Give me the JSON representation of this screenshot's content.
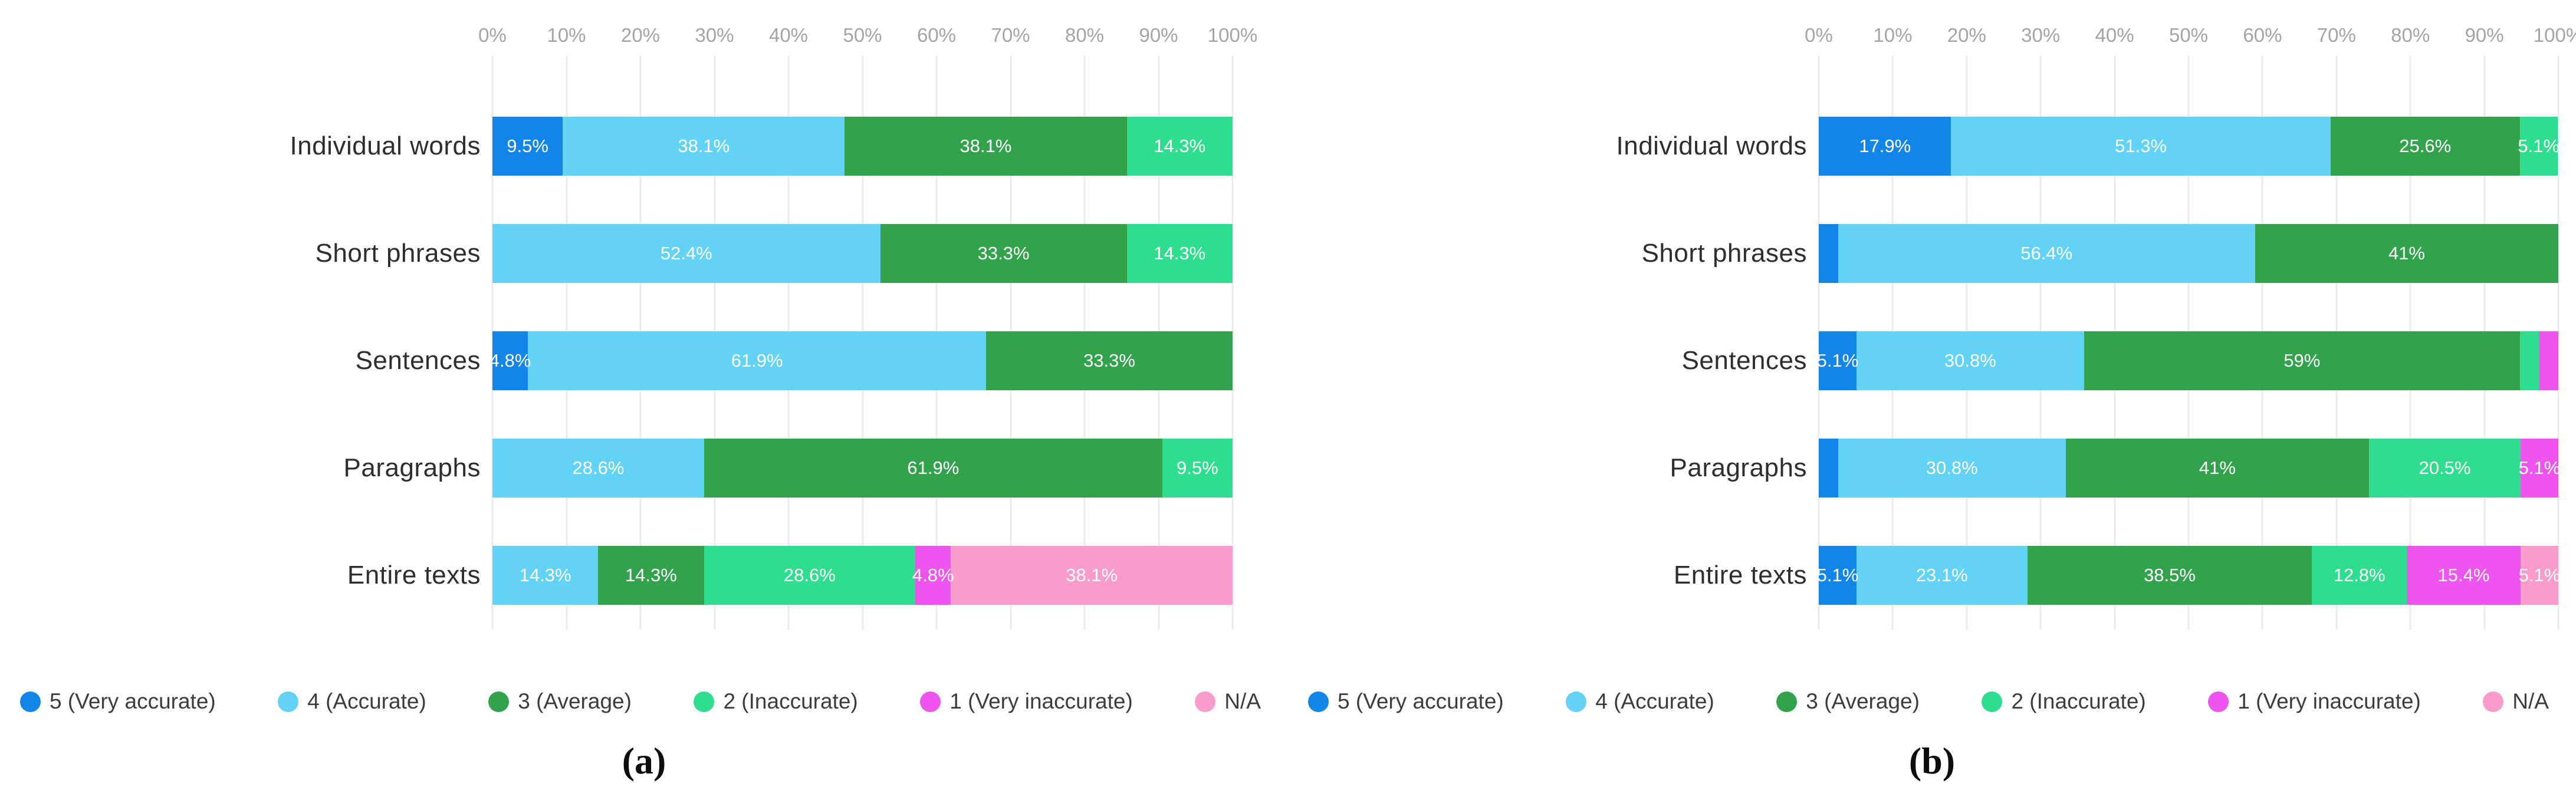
{
  "axis": {
    "ticks": [
      "0%",
      "10%",
      "20%",
      "30%",
      "40%",
      "50%",
      "60%",
      "70%",
      "80%",
      "90%",
      "100%"
    ],
    "min": 0,
    "max": 100,
    "grid_color": "#e9eaf3",
    "tick_color": "#a4a4a4"
  },
  "legend": [
    {
      "key": "c5",
      "label": "5 (Very accurate)",
      "color": "#1285e9"
    },
    {
      "key": "c4",
      "label": "4 (Accurate)",
      "color": "#62d2f6"
    },
    {
      "key": "c3",
      "label": "3 (Average)",
      "color": "#33a24c"
    },
    {
      "key": "c2",
      "label": "2 (Inaccurate)",
      "color": "#2edd8d"
    },
    {
      "key": "c1",
      "label": "1 (Very inaccurate)",
      "color": "#ee55ef"
    },
    {
      "key": "cna",
      "label": "N/A",
      "color": "#f99bcb"
    }
  ],
  "chart_data": [
    {
      "type": "bar",
      "orientation": "horizontal-stacked",
      "caption": "(a)",
      "title": "",
      "xlabel": "",
      "ylabel": "",
      "xlim": [
        0,
        100
      ],
      "x_ticks": [
        "0%",
        "10%",
        "20%",
        "30%",
        "40%",
        "50%",
        "60%",
        "70%",
        "80%",
        "90%",
        "100%"
      ],
      "legend_position": "bottom",
      "grid": true,
      "categories": [
        "Individual words",
        "Short phrases",
        "Sentences",
        "Paragraphs",
        "Entire texts"
      ],
      "series": [
        {
          "name": "5 (Very accurate)",
          "key": "c5",
          "values": [
            9.5,
            0,
            4.8,
            0,
            0
          ],
          "labels": [
            "9.5%",
            "",
            "4.8%",
            "",
            ""
          ]
        },
        {
          "name": "4 (Accurate)",
          "key": "c4",
          "values": [
            38.1,
            52.4,
            61.9,
            28.6,
            14.3
          ],
          "labels": [
            "38.1%",
            "52.4%",
            "61.9%",
            "28.6%",
            "14.3%"
          ]
        },
        {
          "name": "3 (Average)",
          "key": "c3",
          "values": [
            38.1,
            33.3,
            33.3,
            61.9,
            14.3
          ],
          "labels": [
            "38.1%",
            "33.3%",
            "33.3%",
            "61.9%",
            "14.3%"
          ]
        },
        {
          "name": "2 (Inaccurate)",
          "key": "c2",
          "values": [
            14.3,
            14.3,
            0,
            9.5,
            28.6
          ],
          "labels": [
            "14.3%",
            "14.3%",
            "",
            "9.5%",
            "28.6%"
          ]
        },
        {
          "name": "1 (Very inaccurate)",
          "key": "c1",
          "values": [
            0,
            0,
            0,
            0,
            4.8
          ],
          "labels": [
            "",
            "",
            "",
            "",
            "4.8%"
          ]
        },
        {
          "name": "N/A",
          "key": "cna",
          "values": [
            0,
            0,
            0,
            0,
            38.1
          ],
          "labels": [
            "",
            "",
            "",
            "",
            "38.1%"
          ]
        }
      ]
    },
    {
      "type": "bar",
      "orientation": "horizontal-stacked",
      "caption": "(b)",
      "title": "",
      "xlabel": "",
      "ylabel": "",
      "xlim": [
        0,
        100
      ],
      "x_ticks": [
        "0%",
        "10%",
        "20%",
        "30%",
        "40%",
        "50%",
        "60%",
        "70%",
        "80%",
        "90%",
        "100%"
      ],
      "legend_position": "bottom",
      "grid": true,
      "categories": [
        "Individual words",
        "Short phrases",
        "Sentences",
        "Paragraphs",
        "Entire texts"
      ],
      "series": [
        {
          "name": "5 (Very accurate)",
          "key": "c5",
          "values": [
            17.9,
            2.6,
            5.1,
            2.6,
            5.1
          ],
          "labels": [
            "17.9%",
            "",
            "5.1%",
            "",
            "5.1%"
          ]
        },
        {
          "name": "4 (Accurate)",
          "key": "c4",
          "values": [
            51.3,
            56.4,
            30.8,
            30.8,
            23.1
          ],
          "labels": [
            "51.3%",
            "56.4%",
            "30.8%",
            "30.8%",
            "23.1%"
          ]
        },
        {
          "name": "3 (Average)",
          "key": "c3",
          "values": [
            25.6,
            41,
            59,
            41,
            38.5
          ],
          "labels": [
            "25.6%",
            "41%",
            "59%",
            "41%",
            "38.5%"
          ]
        },
        {
          "name": "2 (Inaccurate)",
          "key": "c2",
          "values": [
            5.1,
            0,
            2.6,
            20.5,
            12.8
          ],
          "labels": [
            "5.1%",
            "",
            "",
            "20.5%",
            "12.8%"
          ]
        },
        {
          "name": "1 (Very inaccurate)",
          "key": "c1",
          "values": [
            0,
            0,
            2.6,
            5.1,
            15.4
          ],
          "labels": [
            "",
            "",
            "",
            "5.1%",
            "15.4%"
          ]
        },
        {
          "name": "N/A",
          "key": "cna",
          "values": [
            0,
            0,
            0,
            0,
            5.1
          ],
          "labels": [
            "",
            "",
            "",
            "",
            "5.1%"
          ]
        }
      ]
    }
  ]
}
